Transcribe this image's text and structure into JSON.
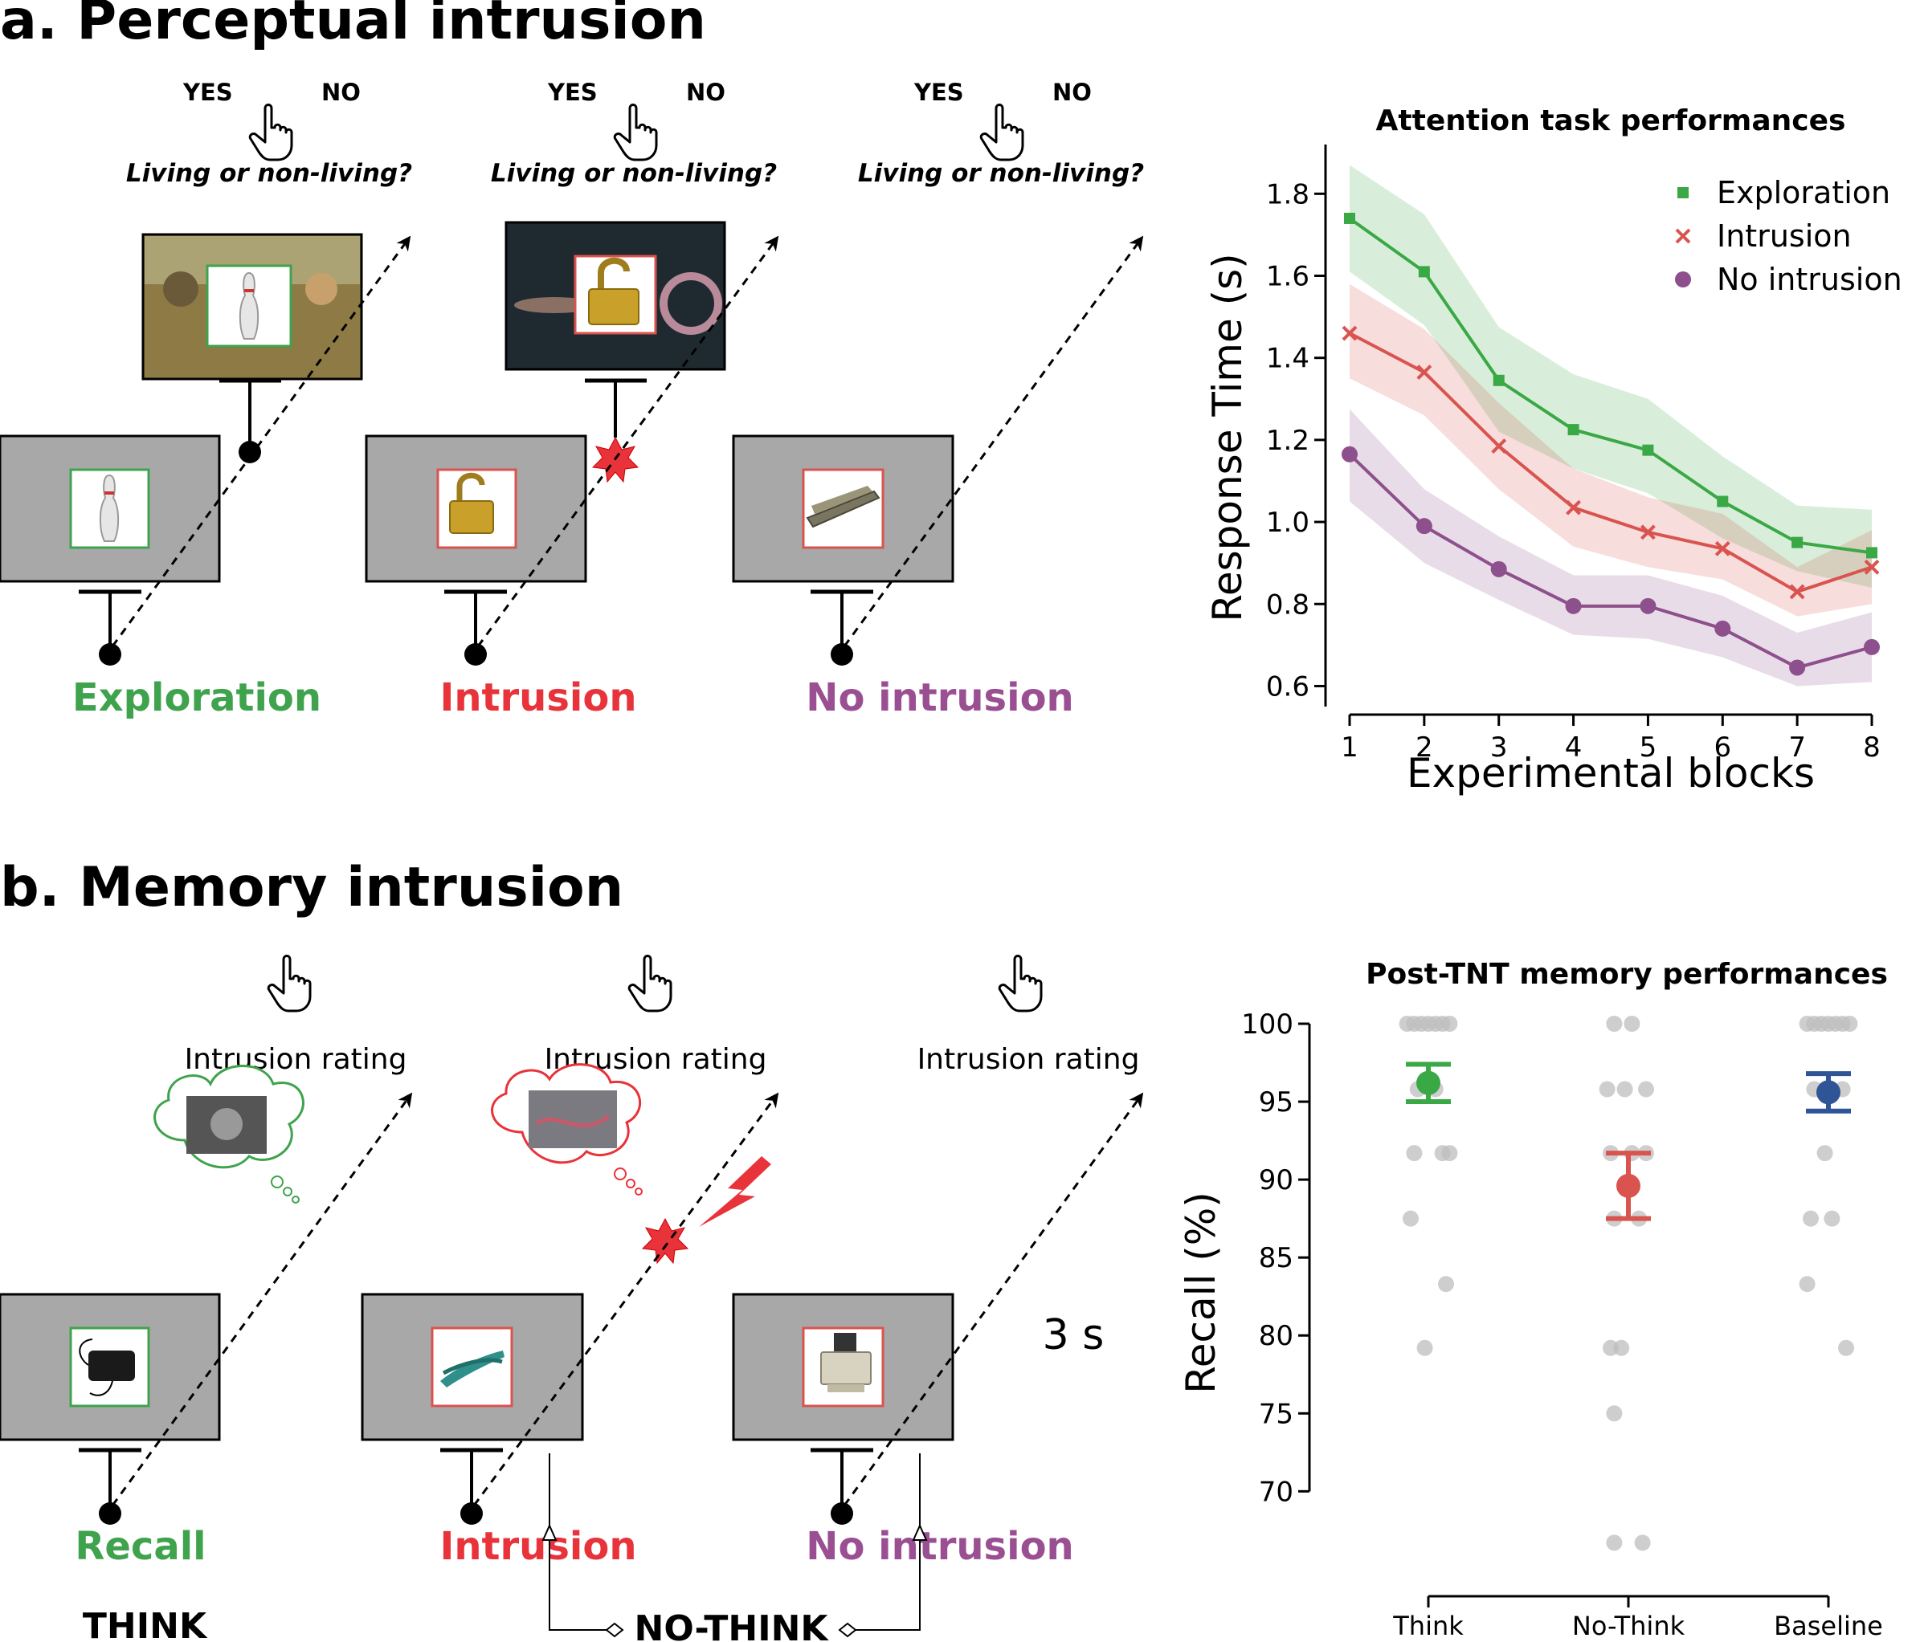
{
  "panel_a": {
    "title": "a. Perceptual intrusion",
    "yes": "YES",
    "no": "NO",
    "question": "Living or non-living?",
    "conditions": [
      "Exploration",
      "Intrusion",
      "No intrusion"
    ]
  },
  "panel_b": {
    "title": "b. Memory intrusion",
    "rating": "Intrusion rating",
    "conditions": [
      "Recall",
      "Intrusion",
      "No intrusion"
    ],
    "duration": "3 s",
    "think": "THINK",
    "no_think": "NO-THINK"
  },
  "colors": {
    "exploration": "#3fa34d",
    "intrusion": "#e8333a",
    "no_intrusion": "#9a4f93",
    "screen_gray": "#a8a8a8",
    "chart_green": "#3aa845",
    "chart_red": "#d9534f",
    "chart_purple": "#8e4f8d",
    "chart_blue": "#2f5597",
    "dot_gray": "#bdbdbd"
  },
  "icons": [
    "hand-pointer-icon",
    "arrow-icon",
    "star-burst-icon",
    "lightning-icon",
    "thought-cloud-icon",
    "bowling-pin-icon",
    "padlock-icon",
    "stapler-icon",
    "hard-drive-icon",
    "pruning-shears-icon",
    "fax-machine-icon"
  ],
  "chart_data": [
    {
      "type": "line",
      "title": "Attention task performances",
      "xlabel": "Experimental blocks",
      "ylabel": "Response Time (s)",
      "x": [
        1,
        2,
        3,
        4,
        5,
        6,
        7,
        8
      ],
      "xticks": [
        "1",
        "2",
        "3",
        "4",
        "5",
        "6",
        "7",
        "8"
      ],
      "yticks": [
        "0.6",
        "0.8",
        "1.0",
        "1.2",
        "1.4",
        "1.6",
        "1.8"
      ],
      "ylim": [
        0.55,
        1.92
      ],
      "legend_position": "top-right",
      "series": [
        {
          "name": "Exploration",
          "marker": "square",
          "color": "#3aa845",
          "values": [
            1.74,
            1.61,
            1.345,
            1.225,
            1.175,
            1.05,
            0.95,
            0.925
          ],
          "lower": [
            1.61,
            1.48,
            1.22,
            1.13,
            1.07,
            0.96,
            0.88,
            0.84
          ],
          "upper": [
            1.87,
            1.75,
            1.475,
            1.36,
            1.3,
            1.16,
            1.04,
            1.03
          ]
        },
        {
          "name": "Intrusion",
          "marker": "x",
          "color": "#d9534f",
          "values": [
            1.46,
            1.365,
            1.185,
            1.035,
            0.975,
            0.935,
            0.83,
            0.89
          ],
          "lower": [
            1.35,
            1.26,
            1.08,
            0.94,
            0.89,
            0.86,
            0.77,
            0.8
          ],
          "upper": [
            1.58,
            1.47,
            1.29,
            1.13,
            1.06,
            1.02,
            0.89,
            0.98
          ]
        },
        {
          "name": "No intrusion",
          "marker": "circle",
          "color": "#8e4f8d",
          "values": [
            1.165,
            0.99,
            0.885,
            0.795,
            0.795,
            0.74,
            0.645,
            0.695
          ],
          "lower": [
            1.05,
            0.9,
            0.81,
            0.725,
            0.715,
            0.67,
            0.6,
            0.61
          ],
          "upper": [
            1.275,
            1.08,
            0.965,
            0.87,
            0.87,
            0.82,
            0.73,
            0.78
          ]
        }
      ]
    },
    {
      "type": "scatter",
      "title": "Post-TNT memory performances",
      "ylabel": "Recall (%)",
      "categories": [
        "Think",
        "No-Think",
        "Baseline"
      ],
      "yticks": [
        "70",
        "75",
        "80",
        "85",
        "90",
        "95",
        "100"
      ],
      "ylim": [
        66,
        100
      ],
      "means": [
        {
          "category": "Think",
          "mean": 96.2,
          "lower": 95.0,
          "upper": 97.4,
          "color": "#3aa845"
        },
        {
          "category": "No-Think",
          "mean": 89.6,
          "lower": 87.5,
          "upper": 91.7,
          "color": "#d9534f"
        },
        {
          "category": "Baseline",
          "mean": 95.6,
          "lower": 94.4,
          "upper": 96.8,
          "color": "#2f5597"
        }
      ],
      "points": [
        {
          "category": "Think",
          "y": 100,
          "offsets": [
            -0.12,
            -0.08,
            -0.04,
            0,
            0.04,
            0.08,
            0.12
          ]
        },
        {
          "category": "Think",
          "y": 95.8,
          "offsets": [
            -0.06,
            0.04
          ]
        },
        {
          "category": "Think",
          "y": 91.7,
          "offsets": [
            -0.08,
            0.08,
            0.12
          ]
        },
        {
          "category": "Think",
          "y": 87.5,
          "offsets": [
            -0.1
          ]
        },
        {
          "category": "Think",
          "y": 83.3,
          "offsets": [
            0.1
          ]
        },
        {
          "category": "Think",
          "y": 79.2,
          "offsets": [
            -0.02
          ]
        },
        {
          "category": "No-Think",
          "y": 100,
          "offsets": [
            -0.08,
            0.02
          ]
        },
        {
          "category": "No-Think",
          "y": 95.8,
          "offsets": [
            -0.12,
            -0.02,
            0.1
          ]
        },
        {
          "category": "No-Think",
          "y": 91.7,
          "offsets": [
            -0.1,
            0.02,
            0.1
          ]
        },
        {
          "category": "No-Think",
          "y": 87.5,
          "offsets": [
            -0.08,
            0.06
          ]
        },
        {
          "category": "No-Think",
          "y": 79.2,
          "offsets": [
            -0.1,
            -0.04
          ]
        },
        {
          "category": "No-Think",
          "y": 75,
          "offsets": [
            -0.08
          ]
        },
        {
          "category": "No-Think",
          "y": 66.7,
          "offsets": [
            -0.08,
            0.08
          ]
        },
        {
          "category": "Baseline",
          "y": 100,
          "offsets": [
            -0.12,
            -0.08,
            -0.04,
            0,
            0.04,
            0.08,
            0.12
          ]
        },
        {
          "category": "Baseline",
          "y": 95.8,
          "offsets": [
            -0.08,
            0.08
          ]
        },
        {
          "category": "Baseline",
          "y": 91.7,
          "offsets": [
            -0.02
          ]
        },
        {
          "category": "Baseline",
          "y": 87.5,
          "offsets": [
            -0.1,
            0.02
          ]
        },
        {
          "category": "Baseline",
          "y": 83.3,
          "offsets": [
            -0.12
          ]
        },
        {
          "category": "Baseline",
          "y": 79.2,
          "offsets": [
            0.1
          ]
        }
      ]
    }
  ]
}
